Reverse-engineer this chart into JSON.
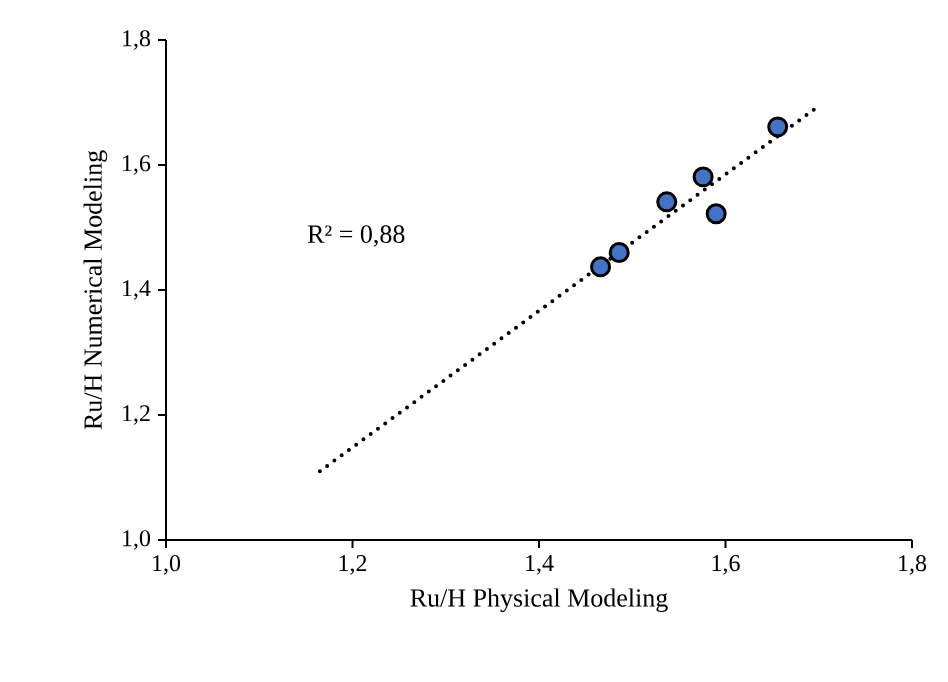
{
  "chart_data": {
    "type": "scatter",
    "xlabel": "Ru/H Physical Modeling",
    "ylabel": "Ru/H Numerical Modeling",
    "annotations": [
      "R² = 0,88"
    ],
    "grid": false,
    "xlim": [
      1.0,
      1.8
    ],
    "ylim": [
      1.0,
      1.8
    ],
    "xticks": [
      {
        "value": 1.0,
        "label": "1,0"
      },
      {
        "value": 1.2,
        "label": "1,2"
      },
      {
        "value": 1.4,
        "label": "1,4"
      },
      {
        "value": 1.6,
        "label": "1,6"
      },
      {
        "value": 1.8,
        "label": "1,8"
      }
    ],
    "yticks": [
      {
        "value": 1.0,
        "label": "1,0"
      },
      {
        "value": 1.2,
        "label": "1,2"
      },
      {
        "value": 1.4,
        "label": "1,4"
      },
      {
        "value": 1.6,
        "label": "1,6"
      },
      {
        "value": 1.8,
        "label": "1,8"
      }
    ],
    "series": [
      {
        "marker": "circle",
        "color": "#4472c4",
        "x": [
          1.466,
          1.486,
          1.537,
          1.576,
          1.59,
          1.656
        ],
        "values": [
          1.437,
          1.46,
          1.541,
          1.581,
          1.522,
          1.661
        ]
      },
      {
        "type": "line",
        "color": "#000000",
        "line_style": "dotted",
        "marker": "none",
        "x": [
          1.165,
          1.698
        ],
        "values": [
          1.11,
          1.692
        ]
      }
    ]
  }
}
